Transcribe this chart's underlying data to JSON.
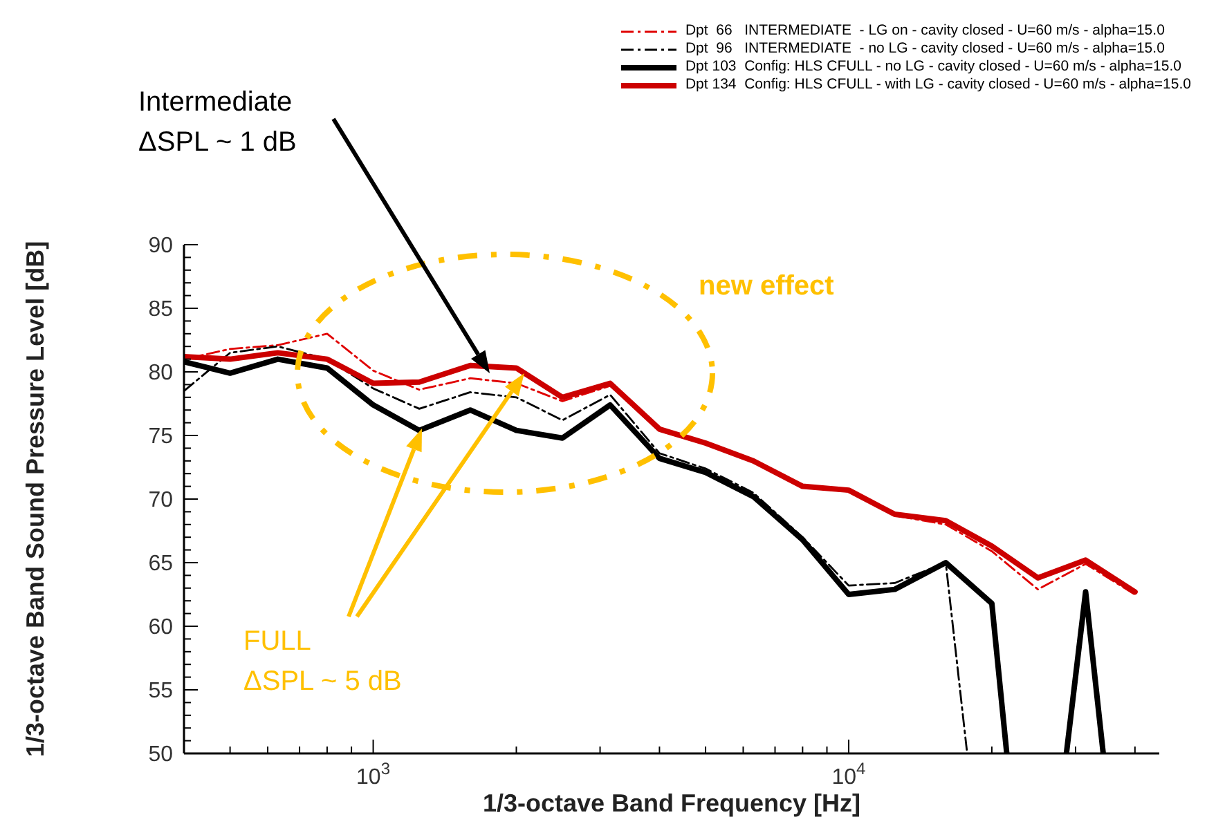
{
  "chart_data": {
    "type": "line",
    "xlabel": "1/3-octave Band Frequency [Hz]",
    "ylabel": "1/3-octave Band Sound Pressure Level [dB]",
    "log": "x",
    "grid": false,
    "legend": "top right",
    "marker": "none",
    "xlim": [
      400,
      45000
    ],
    "ylim": [
      50,
      90
    ],
    "xticks": [
      {
        "value": 400,
        "label": null
      },
      {
        "value": 500,
        "label": null
      },
      {
        "value": 600,
        "label": null
      },
      {
        "value": 700,
        "label": null
      },
      {
        "value": 800,
        "label": null
      },
      {
        "value": 900,
        "label": null
      },
      {
        "value": 1000,
        "label": "10$^{3}$"
      },
      {
        "value": 2000,
        "label": null
      },
      {
        "value": 3000,
        "label": null
      },
      {
        "value": 4000,
        "label": null
      },
      {
        "value": 5000,
        "label": null
      },
      {
        "value": 6000,
        "label": null
      },
      {
        "value": 7000,
        "label": null
      },
      {
        "value": 8000,
        "label": null
      },
      {
        "value": 9000,
        "label": null
      },
      {
        "value": 10000,
        "label": "10$^{4}$"
      },
      {
        "value": 20000,
        "label": null
      },
      {
        "value": 30000,
        "label": null
      },
      {
        "value": 40000,
        "label": null
      }
    ],
    "yticks": [
      50,
      {
        "value": 51,
        "label": null
      },
      {
        "value": 52,
        "label": null
      },
      {
        "value": 53,
        "label": null
      },
      {
        "value": 54,
        "label": null
      },
      55,
      {
        "value": 56,
        "label": null
      },
      {
        "value": 57,
        "label": null
      },
      {
        "value": 58,
        "label": null
      },
      {
        "value": 59,
        "label": null
      },
      60,
      {
        "value": 61,
        "label": null
      },
      {
        "value": 62,
        "label": null
      },
      {
        "value": 63,
        "label": null
      },
      {
        "value": 64,
        "label": null
      },
      65,
      {
        "value": 66,
        "label": null
      },
      {
        "value": 67,
        "label": null
      },
      {
        "value": 68,
        "label": null
      },
      {
        "value": 69,
        "label": null
      },
      70,
      {
        "value": 71,
        "label": null
      },
      {
        "value": 72,
        "label": null
      },
      {
        "value": 73,
        "label": null
      },
      {
        "value": 74,
        "label": null
      },
      75,
      {
        "value": 76,
        "label": null
      },
      {
        "value": 77,
        "label": null
      },
      {
        "value": 78,
        "label": null
      },
      {
        "value": 79,
        "label": null
      },
      80,
      {
        "value": 81,
        "label": null
      },
      {
        "value": 82,
        "label": null
      },
      {
        "value": 83,
        "label": null
      },
      {
        "value": 84,
        "label": null
      },
      85,
      {
        "value": 86,
        "label": null
      },
      {
        "value": 87,
        "label": null
      },
      {
        "value": 88,
        "label": null
      },
      {
        "value": 89,
        "label": null
      },
      90
    ],
    "annotations": [
      "Intermediate\nΔSPL ~ 1 dB",
      "new effect",
      "FULL\nΔSPL ~ 5 dB"
    ],
    "series": [
      {
        "name": "Dpt  66   INTERMEDIATE  - LG on - cavity closed - U=60 m/s - alpha=15.0",
        "color": "#e00000",
        "line_style": "dashed",
        "x": [
          400,
          500,
          630,
          800,
          1000,
          1250,
          1600,
          2000,
          2500,
          3150,
          4000,
          5000,
          6300,
          8000,
          10000,
          12500,
          16000,
          20000,
          25000,
          31500,
          40000
        ],
        "values": [
          81.0,
          81.8,
          82.1,
          83.0,
          80.1,
          78.6,
          79.5,
          79.1,
          77.7,
          78.9,
          75.5,
          74.3,
          72.9,
          70.9,
          70.6,
          68.7,
          68.0,
          65.9,
          62.9,
          64.9,
          62.5
        ]
      },
      {
        "name": "Dpt  96   INTERMEDIATE  - no LG - cavity closed - U=60 m/s - alpha=15.0",
        "color": "#000000",
        "line_style": "dashed",
        "x": [
          400,
          500,
          630,
          800,
          1000,
          1250,
          1600,
          2000,
          2500,
          3150,
          4000,
          5000,
          6300,
          8000,
          10000,
          12500,
          16000,
          17750
        ],
        "values": [
          78.5,
          81.5,
          82.0,
          81.0,
          78.7,
          77.1,
          78.4,
          78.0,
          76.2,
          78.2,
          73.6,
          72.4,
          70.5,
          67.0,
          63.2,
          63.4,
          65.0,
          50
        ]
      },
      {
        "name": "Dpt 103  Config: HLS CFULL - no LG - cavity closed - U=60 m/s - alpha=15.0",
        "color": "#000000",
        "line_style": "solid",
        "x": [
          400,
          500,
          630,
          800,
          1000,
          1250,
          1600,
          2000,
          2500,
          3150,
          4000,
          5000,
          6300,
          8000,
          10000,
          12500,
          16000,
          20000,
          21500,
          25000,
          28700,
          31500,
          34300
        ],
        "values": [
          80.8,
          79.9,
          81.0,
          80.3,
          77.4,
          75.4,
          77.0,
          75.4,
          74.8,
          77.4,
          73.2,
          72.1,
          70.2,
          66.8,
          62.5,
          62.9,
          65.0,
          61.8,
          50,
          null,
          50,
          62.7,
          50
        ]
      },
      {
        "name": "Dpt 134  Config: HLS CFULL - with LG - cavity closed - U=60 m/s - alpha=15.0",
        "color": "#cc0000",
        "line_style": "solid",
        "x": [
          400,
          500,
          630,
          800,
          1000,
          1250,
          1600,
          2000,
          2500,
          3150,
          4000,
          5000,
          6300,
          8000,
          10000,
          12500,
          16000,
          20000,
          25000,
          31500,
          40000
        ],
        "values": [
          81.2,
          81.0,
          81.5,
          81.0,
          79.1,
          79.2,
          80.5,
          80.3,
          78.0,
          79.1,
          75.5,
          74.4,
          73.0,
          71.0,
          70.7,
          68.8,
          68.3,
          66.3,
          63.8,
          65.2,
          62.7
        ]
      }
    ]
  }
}
